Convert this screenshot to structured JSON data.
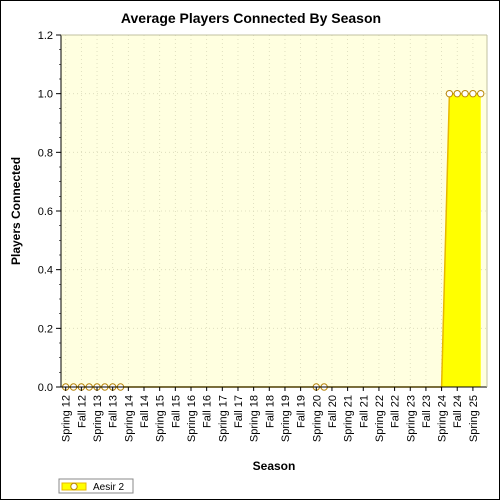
{
  "chart_data": {
    "type": "area",
    "title": "Average Players Connected By Season",
    "xlabel": "Season",
    "ylabel": "Players Connected",
    "categories": [
      "Spring 12",
      "Fall 12",
      "Spring 13",
      "Fall 13",
      "Spring 14",
      "Fall 14",
      "Spring 15",
      "Fall 15",
      "Spring 16",
      "Fall 16",
      "Spring 17",
      "Fall 17",
      "Spring 18",
      "Fall 18",
      "Spring 19",
      "Fall 19",
      "Spring 20",
      "Fall 20",
      "Spring 21",
      "Fall 21",
      "Spring 22",
      "Fall 22",
      "Spring 23",
      "Fall 23",
      "Spring 24",
      "Fall 24",
      "Spring 25"
    ],
    "x": [
      12,
      12.25,
      12.5,
      12.75,
      13,
      13.25,
      13.5,
      13.75,
      14,
      14.25,
      14.5,
      14.75,
      15,
      15.25,
      15.5,
      15.75,
      16,
      16.25,
      16.5,
      16.75,
      17,
      17.25,
      17.5,
      17.75,
      18,
      18.25,
      18.5,
      18.75,
      19,
      19.25,
      19.5,
      19.75,
      20,
      20.25,
      20.5,
      20.75,
      21,
      21.25,
      21.5,
      21.75,
      22,
      22.25,
      22.5,
      22.75,
      23,
      23.25,
      23.5,
      23.75,
      24,
      24.25,
      24.5,
      24.75,
      25,
      25.25
    ],
    "xlim": [
      11.85,
      25.45
    ],
    "markers": [
      12,
      12.25,
      12.5,
      12.75,
      13,
      13.25,
      13.5,
      13.75,
      20,
      20.25,
      24.25,
      24.5,
      24.75,
      25,
      25.25
    ],
    "series": [
      {
        "name": "Aesir 2",
        "values": [
          0,
          0,
          0,
          0,
          0,
          0,
          0,
          0,
          0,
          0,
          0,
          0,
          0,
          0,
          0,
          0,
          0,
          0,
          0,
          0,
          0,
          0,
          0,
          0,
          0,
          0,
          0,
          0,
          0,
          0,
          0,
          0,
          0,
          0,
          0,
          0,
          0,
          0,
          0,
          0,
          0,
          0,
          0,
          0,
          0,
          0,
          0,
          0,
          0,
          1,
          1,
          1,
          1,
          1
        ],
        "color": "#ffff00",
        "edge_color": "#e8b800",
        "marker_color": "#b8860b"
      }
    ],
    "ylim": [
      0,
      1.2
    ],
    "yticks": [
      "0.0",
      "0.2",
      "0.4",
      "0.6",
      "0.8",
      "1.0",
      "1.2"
    ],
    "grid": true,
    "legend": "bottom-left",
    "plot_background": "#ffffe0"
  }
}
